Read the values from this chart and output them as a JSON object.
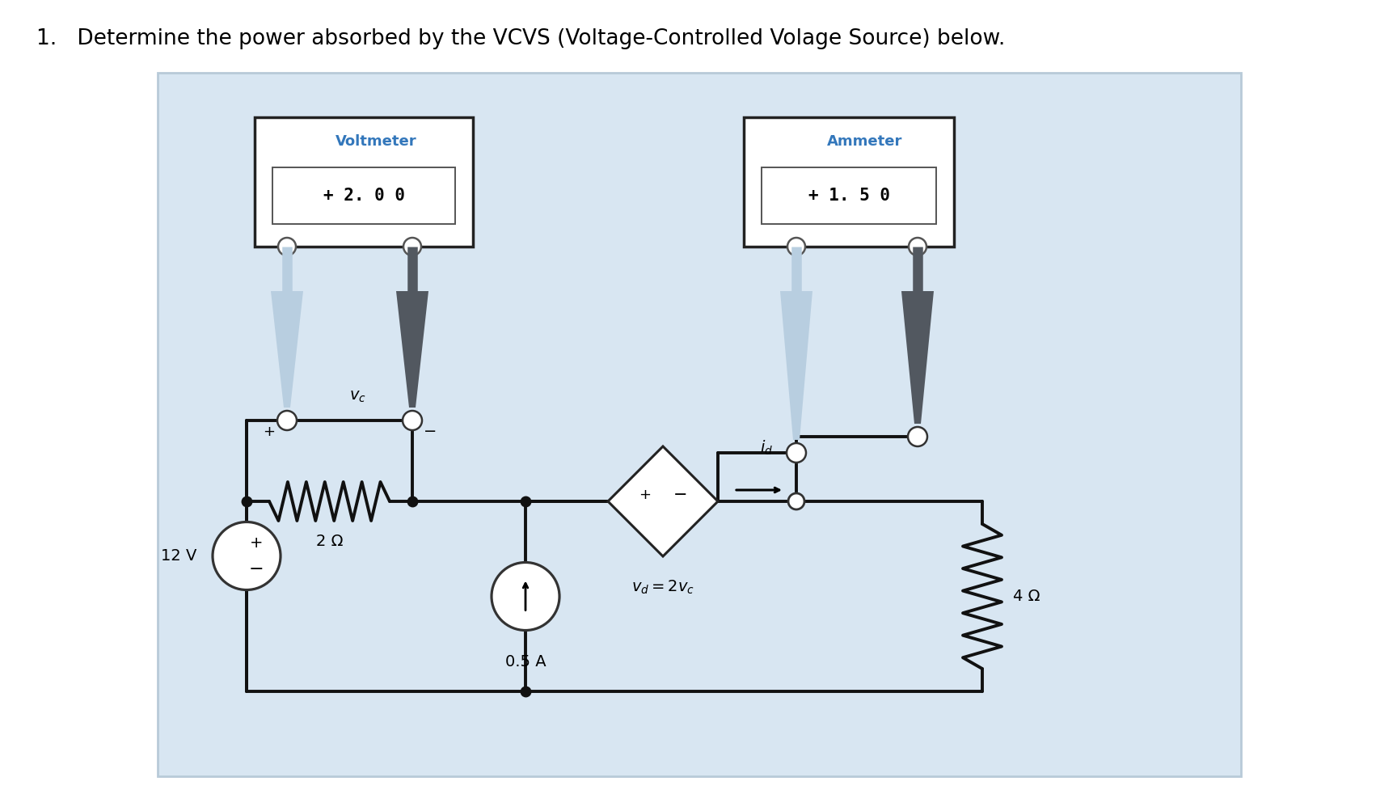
{
  "title": "1.   Determine the power absorbed by the VCVS (Voltage-Controlled Volage Source) below.",
  "bg_panel_color": "#d8e6f2",
  "bg_panel_edge": "#b8cad8",
  "wire_color": "#111111",
  "blue_label_color": "#3377bb",
  "voltmeter_display": "+ 2. 0 0",
  "ammeter_display": "+ 1. 5 0",
  "voltmeter_label": "Voltmeter",
  "ammeter_label": "Ammeter",
  "probe_light": "#b8cee0",
  "probe_dark": "#525860",
  "meter_fill": "#ffffff",
  "meter_edge": "#222222",
  "source_fill": "#ffffff",
  "source_edge": "#333333",
  "res2_label": "2 Ω",
  "res4_label": "4 Ω",
  "vsrc_label": "12 V",
  "csrc_label": "0.5 A"
}
